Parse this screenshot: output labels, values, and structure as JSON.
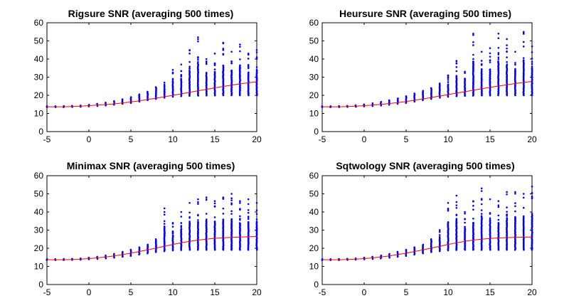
{
  "chart_data": [
    {
      "type": "scatter",
      "title": "Rigsure SNR (averaging 500 times)",
      "xlabel": "",
      "ylabel": "",
      "xlim": [
        -5,
        20
      ],
      "ylim": [
        0,
        60
      ],
      "xticks": [
        -5,
        0,
        5,
        10,
        15,
        20
      ],
      "yticks": [
        0,
        10,
        20,
        30,
        40,
        50,
        60
      ],
      "grid": false,
      "series": [
        {
          "color": "#0000ff",
          "style": "scatter",
          "x": [
            -5,
            -4,
            -3,
            -2,
            -1,
            0,
            1,
            2,
            3,
            4,
            5,
            6,
            7,
            8,
            9,
            10,
            11,
            12,
            13,
            14,
            15,
            16,
            17,
            18,
            19,
            20
          ],
          "min": [
            13.5,
            13.5,
            13.5,
            13.6,
            13.7,
            13.9,
            14.1,
            14.4,
            14.8,
            15.3,
            15.8,
            16.5,
            17.3,
            18.0,
            18.7,
            19.2,
            19.5,
            19.7,
            19.8,
            19.9,
            19.9,
            20.0,
            20.0,
            20.0,
            20.0,
            20.0
          ],
          "max": [
            14.0,
            14.0,
            14.1,
            14.2,
            14.4,
            14.8,
            15.3,
            16.0,
            16.8,
            17.8,
            19.0,
            20.5,
            22.0,
            24.5,
            27.0,
            34.0,
            37.0,
            45.0,
            52.0,
            40.0,
            43.0,
            49.0,
            44.0,
            48.0,
            43.0,
            45.0
          ]
        },
        {
          "color": "#ff0000",
          "style": "line",
          "x": [
            -5,
            -4,
            -3,
            -2,
            -1,
            0,
            1,
            2,
            3,
            4,
            5,
            6,
            7,
            8,
            9,
            10,
            11,
            12,
            13,
            14,
            15,
            16,
            17,
            18,
            19,
            20
          ],
          "y": [
            13.7,
            13.7,
            13.7,
            13.8,
            14.0,
            14.3,
            14.6,
            14.9,
            15.3,
            15.8,
            16.4,
            17.0,
            17.7,
            18.4,
            19.2,
            20.0,
            20.8,
            21.7,
            22.5,
            23.3,
            24.1,
            24.9,
            25.6,
            26.3,
            26.9,
            27.5
          ]
        }
      ]
    },
    {
      "type": "scatter",
      "title": "Heursure SNR (averaging 500 times)",
      "xlabel": "",
      "ylabel": "",
      "xlim": [
        -5,
        20
      ],
      "ylim": [
        0,
        60
      ],
      "xticks": [
        -5,
        0,
        5,
        10,
        15,
        20
      ],
      "yticks": [
        0,
        10,
        20,
        30,
        40,
        50,
        60
      ],
      "grid": false,
      "series": [
        {
          "color": "#0000ff",
          "style": "scatter",
          "x": [
            -5,
            -4,
            -3,
            -2,
            -1,
            0,
            1,
            2,
            3,
            4,
            5,
            6,
            7,
            8,
            9,
            10,
            11,
            12,
            13,
            14,
            15,
            16,
            17,
            18,
            19,
            20
          ],
          "min": [
            13.5,
            13.5,
            13.5,
            13.6,
            13.7,
            13.9,
            14.1,
            14.4,
            14.8,
            15.3,
            15.8,
            16.5,
            17.3,
            18.0,
            18.7,
            19.2,
            19.5,
            19.7,
            19.8,
            19.9,
            19.9,
            20.0,
            20.0,
            20.0,
            20.0,
            20.0
          ],
          "max": [
            14.0,
            14.0,
            14.1,
            14.2,
            14.5,
            15.0,
            15.6,
            16.4,
            17.3,
            18.3,
            19.5,
            21.0,
            22.5,
            24.0,
            26.5,
            31.0,
            39.0,
            33.0,
            54.0,
            44.0,
            46.0,
            54.0,
            51.0,
            44.0,
            55.0,
            47.0
          ]
        },
        {
          "color": "#ff0000",
          "style": "line",
          "x": [
            -5,
            -4,
            -3,
            -2,
            -1,
            0,
            1,
            2,
            3,
            4,
            5,
            6,
            7,
            8,
            9,
            10,
            11,
            12,
            13,
            14,
            15,
            16,
            17,
            18,
            19,
            20
          ],
          "y": [
            13.7,
            13.7,
            13.7,
            13.8,
            14.0,
            14.3,
            14.6,
            15.0,
            15.5,
            16.0,
            16.6,
            17.3,
            18.0,
            18.8,
            19.6,
            20.4,
            21.2,
            22.0,
            22.8,
            23.6,
            24.4,
            25.1,
            25.8,
            26.5,
            27.1,
            27.7
          ]
        }
      ]
    },
    {
      "type": "scatter",
      "title": "Minimax SNR (averaging 500 times)",
      "xlabel": "",
      "ylabel": "",
      "xlim": [
        -5,
        20
      ],
      "ylim": [
        0,
        60
      ],
      "xticks": [
        -5,
        0,
        5,
        10,
        15,
        20
      ],
      "yticks": [
        0,
        10,
        20,
        30,
        40,
        50,
        60
      ],
      "grid": false,
      "series": [
        {
          "color": "#0000ff",
          "style": "scatter",
          "x": [
            -5,
            -4,
            -3,
            -2,
            -1,
            0,
            1,
            2,
            3,
            4,
            5,
            6,
            7,
            8,
            9,
            10,
            11,
            12,
            13,
            14,
            15,
            16,
            17,
            18,
            19,
            20
          ],
          "min": [
            13.5,
            13.5,
            13.5,
            13.6,
            13.7,
            13.9,
            14.1,
            14.4,
            14.8,
            15.3,
            15.8,
            16.5,
            17.2,
            17.9,
            18.4,
            18.8,
            19.0,
            19.1,
            19.1,
            19.1,
            19.1,
            19.1,
            19.1,
            19.1,
            19.1,
            19.1
          ],
          "max": [
            14.0,
            14.0,
            14.1,
            14.2,
            14.4,
            14.8,
            15.3,
            16.0,
            16.9,
            18.0,
            19.2,
            20.5,
            22.0,
            25.0,
            42.0,
            34.0,
            40.0,
            45.0,
            47.0,
            48.0,
            46.0,
            48.0,
            50.0,
            46.0,
            47.0,
            45.0
          ]
        },
        {
          "color": "#ff0000",
          "style": "line",
          "x": [
            -5,
            -4,
            -3,
            -2,
            -1,
            0,
            1,
            2,
            3,
            4,
            5,
            6,
            7,
            8,
            9,
            10,
            11,
            12,
            13,
            14,
            15,
            16,
            17,
            18,
            19,
            20
          ],
          "y": [
            13.7,
            13.7,
            13.7,
            13.8,
            14.0,
            14.3,
            14.7,
            15.2,
            15.8,
            16.5,
            17.3,
            18.2,
            19.1,
            20.1,
            21.1,
            22.1,
            23.0,
            23.8,
            24.5,
            25.0,
            25.5,
            25.8,
            26.0,
            26.2,
            26.3,
            26.5
          ]
        }
      ]
    },
    {
      "type": "scatter",
      "title": "Sqtwology SNR (averaging 500 times)",
      "xlabel": "",
      "ylabel": "",
      "xlim": [
        -5,
        20
      ],
      "ylim": [
        0,
        60
      ],
      "xticks": [
        -5,
        0,
        5,
        10,
        15,
        20
      ],
      "yticks": [
        0,
        10,
        20,
        30,
        40,
        50,
        60
      ],
      "grid": false,
      "series": [
        {
          "color": "#0000ff",
          "style": "scatter",
          "x": [
            -5,
            -4,
            -3,
            -2,
            -1,
            0,
            1,
            2,
            3,
            4,
            5,
            6,
            7,
            8,
            9,
            10,
            11,
            12,
            13,
            14,
            15,
            16,
            17,
            18,
            19,
            20
          ],
          "min": [
            13.5,
            13.5,
            13.5,
            13.6,
            13.7,
            13.9,
            14.1,
            14.4,
            14.8,
            15.3,
            15.8,
            16.5,
            17.2,
            17.9,
            18.4,
            18.8,
            19.0,
            19.1,
            19.1,
            19.1,
            19.1,
            19.1,
            19.1,
            19.1,
            19.1,
            19.1
          ],
          "max": [
            14.0,
            14.0,
            14.1,
            14.2,
            14.4,
            14.8,
            15.3,
            16.0,
            16.9,
            18.0,
            19.2,
            20.5,
            22.0,
            25.0,
            30.0,
            45.0,
            49.0,
            40.0,
            46.0,
            53.0,
            47.0,
            46.0,
            51.0,
            51.0,
            50.0,
            54.0
          ]
        },
        {
          "color": "#ff0000",
          "style": "line",
          "x": [
            -5,
            -4,
            -3,
            -2,
            -1,
            0,
            1,
            2,
            3,
            4,
            5,
            6,
            7,
            8,
            9,
            10,
            11,
            12,
            13,
            14,
            15,
            16,
            17,
            18,
            19,
            20
          ],
          "y": [
            13.7,
            13.7,
            13.7,
            13.8,
            14.0,
            14.3,
            14.7,
            15.2,
            15.8,
            16.5,
            17.3,
            18.2,
            19.1,
            20.1,
            21.1,
            22.1,
            23.0,
            23.8,
            24.5,
            25.0,
            25.4,
            25.7,
            25.9,
            26.0,
            26.1,
            26.2
          ]
        }
      ]
    }
  ]
}
